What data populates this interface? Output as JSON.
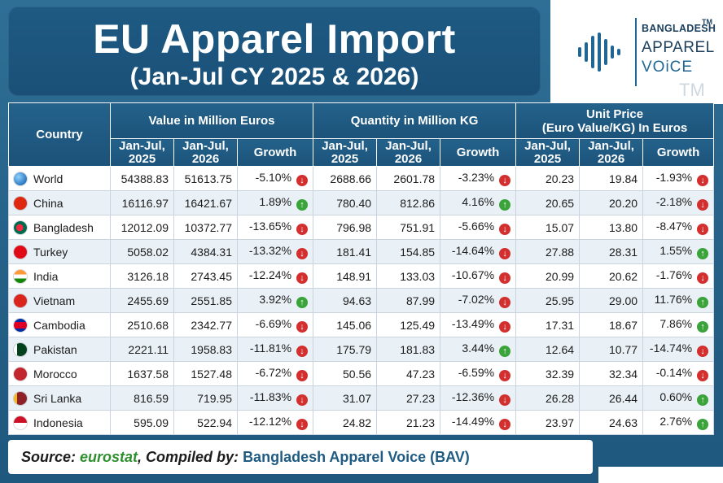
{
  "title": "EU Apparel Import",
  "subtitle": "(Jan-Jul CY 2025 & 2026)",
  "logo": {
    "line1": "BANGLADESH",
    "line2": "APPAREL",
    "line3": "VOiCE",
    "tm": "TM",
    "tm2": "TM"
  },
  "headers": {
    "country": "Country",
    "value": "Value in Million Euros",
    "quantity": "Quantity in Million KG",
    "unit_price_line1": "Unit Price",
    "unit_price_line2": "(Euro Value/KG) In Euros",
    "y2025_a": "Jan-Jul,",
    "y2025_b": "2025",
    "y2026_a": "Jan-Jul,",
    "y2026_b": "2026",
    "growth": "Growth"
  },
  "rows": [
    {
      "country": "World",
      "flag": "world-flag-icon",
      "v25": "54388.83",
      "v26": "51613.75",
      "vg": "-5.10%",
      "vd": "down",
      "q25": "2688.66",
      "q26": "2601.78",
      "qg": "-3.23%",
      "qd": "down",
      "p25": "20.23",
      "p26": "19.84",
      "pg": "-1.93%",
      "pd": "down"
    },
    {
      "country": "China",
      "flag": "china-flag-icon",
      "v25": "16116.97",
      "v26": "16421.67",
      "vg": "1.89%",
      "vd": "up",
      "q25": "780.40",
      "q26": "812.86",
      "qg": "4.16%",
      "qd": "up",
      "p25": "20.65",
      "p26": "20.20",
      "pg": "-2.18%",
      "pd": "down"
    },
    {
      "country": "Bangladesh",
      "flag": "bangladesh-flag-icon",
      "v25": "12012.09",
      "v26": "10372.77",
      "vg": "-13.65%",
      "vd": "down",
      "q25": "796.98",
      "q26": "751.91",
      "qg": "-5.66%",
      "qd": "down",
      "p25": "15.07",
      "p26": "13.80",
      "pg": "-8.47%",
      "pd": "down"
    },
    {
      "country": "Turkey",
      "flag": "turkey-flag-icon",
      "v25": "5058.02",
      "v26": "4384.31",
      "vg": "-13.32%",
      "vd": "down",
      "q25": "181.41",
      "q26": "154.85",
      "qg": "-14.64%",
      "qd": "down",
      "p25": "27.88",
      "p26": "28.31",
      "pg": "1.55%",
      "pd": "up"
    },
    {
      "country": "India",
      "flag": "india-flag-icon",
      "v25": "3126.18",
      "v26": "2743.45",
      "vg": "-12.24%",
      "vd": "down",
      "q25": "148.91",
      "q26": "133.03",
      "qg": "-10.67%",
      "qd": "down",
      "p25": "20.99",
      "p26": "20.62",
      "pg": "-1.76%",
      "pd": "down"
    },
    {
      "country": "Vietnam",
      "flag": "vietnam-flag-icon",
      "v25": "2455.69",
      "v26": "2551.85",
      "vg": "3.92%",
      "vd": "up",
      "q25": "94.63",
      "q26": "87.99",
      "qg": "-7.02%",
      "qd": "down",
      "p25": "25.95",
      "p26": "29.00",
      "pg": "11.76%",
      "pd": "up"
    },
    {
      "country": "Cambodia",
      "flag": "cambodia-flag-icon",
      "v25": "2510.68",
      "v26": "2342.77",
      "vg": "-6.69%",
      "vd": "down",
      "q25": "145.06",
      "q26": "125.49",
      "qg": "-13.49%",
      "qd": "down",
      "p25": "17.31",
      "p26": "18.67",
      "pg": "7.86%",
      "pd": "up"
    },
    {
      "country": "Pakistan",
      "flag": "pakistan-flag-icon",
      "v25": "2221.11",
      "v26": "1958.83",
      "vg": "-11.81%",
      "vd": "down",
      "q25": "175.79",
      "q26": "181.83",
      "qg": "3.44%",
      "qd": "up",
      "p25": "12.64",
      "p26": "10.77",
      "pg": "-14.74%",
      "pd": "down"
    },
    {
      "country": "Morocco",
      "flag": "morocco-flag-icon",
      "v25": "1637.58",
      "v26": "1527.48",
      "vg": "-6.72%",
      "vd": "down",
      "q25": "50.56",
      "q26": "47.23",
      "qg": "-6.59%",
      "qd": "down",
      "p25": "32.39",
      "p26": "32.34",
      "pg": "-0.14%",
      "pd": "down"
    },
    {
      "country": "Sri Lanka",
      "flag": "sri-lanka-flag-icon",
      "v25": "816.59",
      "v26": "719.95",
      "vg": "-11.83%",
      "vd": "down",
      "q25": "31.07",
      "q26": "27.23",
      "qg": "-12.36%",
      "qd": "down",
      "p25": "26.28",
      "p26": "26.44",
      "pg": "0.60%",
      "pd": "up"
    },
    {
      "country": "Indonesia",
      "flag": "indonesia-flag-icon",
      "v25": "595.09",
      "v26": "522.94",
      "vg": "-12.12%",
      "vd": "down",
      "q25": "24.82",
      "q26": "21.23",
      "qg": "-14.49%",
      "qd": "down",
      "p25": "23.97",
      "p26": "24.63",
      "pg": "2.76%",
      "pd": "up"
    }
  ],
  "source": {
    "label": "Source: ",
    "org": "eurostat",
    "mid": ", Compiled by: ",
    "compiler": "Bangladesh Apparel Voice (BAV)"
  }
}
